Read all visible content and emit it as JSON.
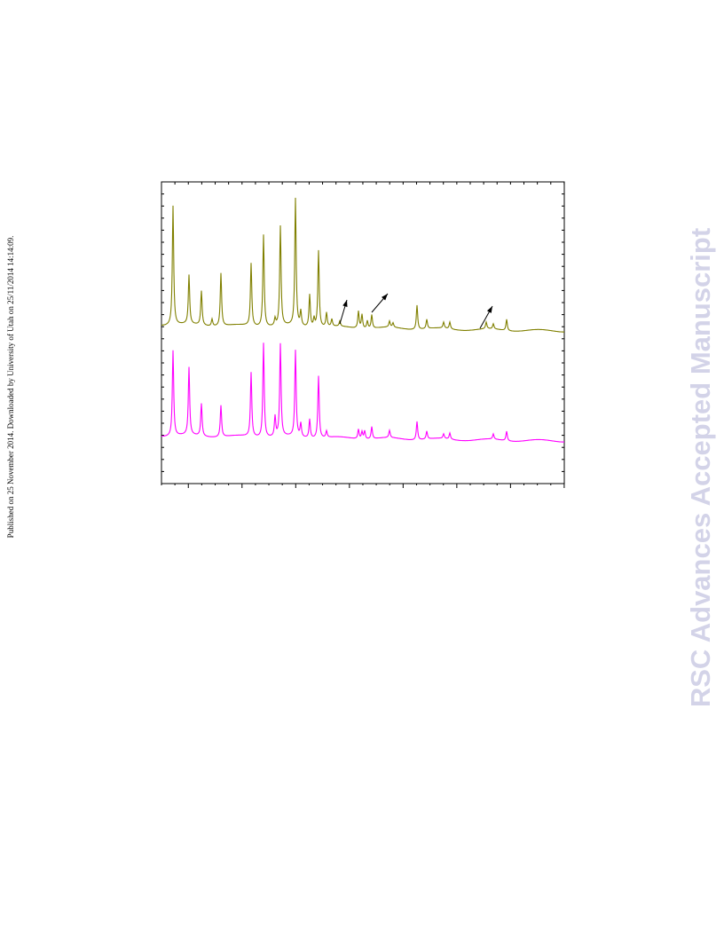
{
  "sidebar": {
    "published": "Published on 25 November 2014. Downloaded by University of Utah on 25/11/2014 14:14:09."
  },
  "watermark": {
    "text": "RSC Advances Accepted Manuscript"
  }
}
